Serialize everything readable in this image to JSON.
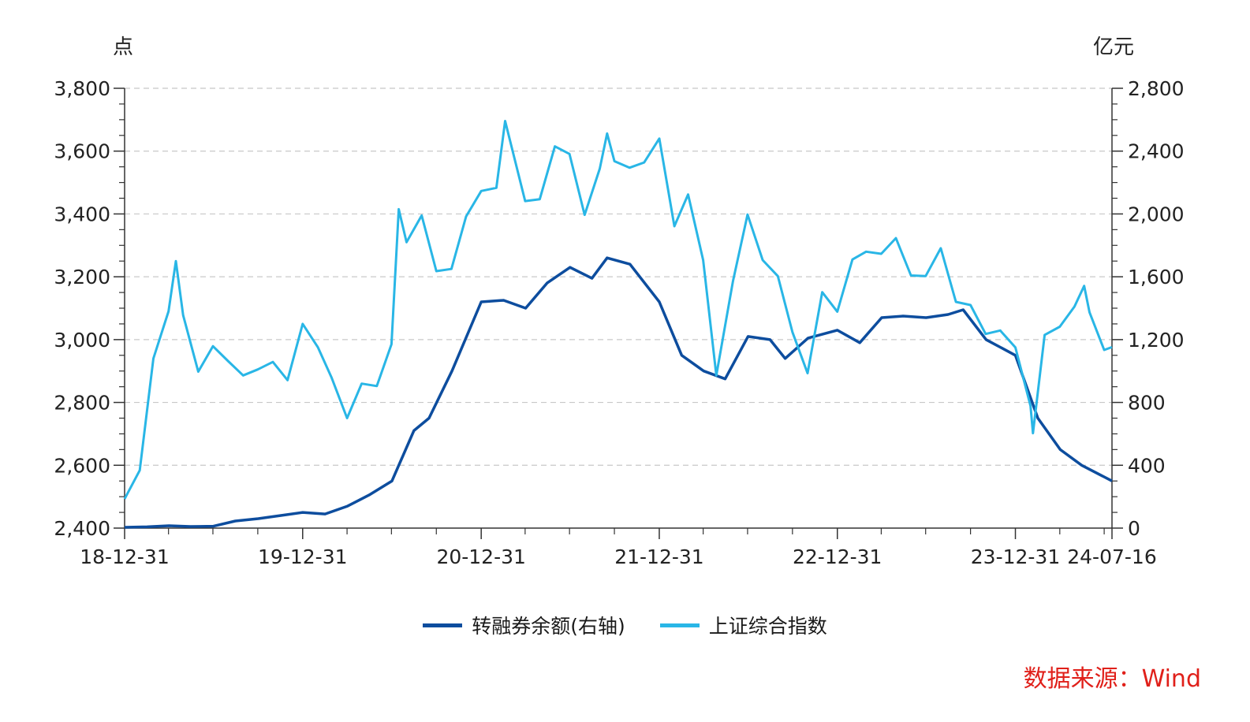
{
  "chart_data": {
    "type": "line",
    "left_axis_unit": "点",
    "right_axis_unit": "亿元",
    "left_ylim": [
      2400,
      3800
    ],
    "right_ylim": [
      0,
      2800
    ],
    "left_ticks": [
      "2,400",
      "2,600",
      "2,800",
      "3,000",
      "3,200",
      "3,400",
      "3,600",
      "3,800"
    ],
    "right_ticks": [
      "0",
      "400",
      "800",
      "1,200",
      "1,600",
      "2,000",
      "2,400",
      "2,800"
    ],
    "x_tick_labels": [
      "18-12-31",
      "19-12-31",
      "20-12-31",
      "21-12-31",
      "22-12-31",
      "23-12-31",
      "24-07-16"
    ],
    "grid": true,
    "legend_position": "bottom",
    "series": [
      {
        "name": "转融券余额(右轴)",
        "axis": "right",
        "color": "#0d4d9e",
        "points": [
          [
            "2018-12-31",
            5
          ],
          [
            "2019-02-15",
            8
          ],
          [
            "2019-04-01",
            15
          ],
          [
            "2019-05-15",
            10
          ],
          [
            "2019-07-01",
            12
          ],
          [
            "2019-08-15",
            45
          ],
          [
            "2019-10-01",
            60
          ],
          [
            "2019-11-15",
            80
          ],
          [
            "2019-12-31",
            100
          ],
          [
            "2020-02-15",
            90
          ],
          [
            "2020-04-01",
            140
          ],
          [
            "2020-05-15",
            210
          ],
          [
            "2020-07-01",
            300
          ],
          [
            "2020-08-15",
            620
          ],
          [
            "2020-09-15",
            700
          ],
          [
            "2020-11-01",
            1000
          ],
          [
            "2020-12-31",
            1440
          ],
          [
            "2021-02-15",
            1450
          ],
          [
            "2021-04-01",
            1400
          ],
          [
            "2021-05-15",
            1560
          ],
          [
            "2021-07-01",
            1660
          ],
          [
            "2021-08-15",
            1590
          ],
          [
            "2021-09-15",
            1720
          ],
          [
            "2021-11-01",
            1680
          ],
          [
            "2021-12-31",
            1440
          ],
          [
            "2022-02-15",
            1100
          ],
          [
            "2022-04-01",
            1000
          ],
          [
            "2022-05-15",
            950
          ],
          [
            "2022-07-01",
            1220
          ],
          [
            "2022-08-15",
            1200
          ],
          [
            "2022-09-15",
            1080
          ],
          [
            "2022-11-01",
            1210
          ],
          [
            "2022-12-31",
            1260
          ],
          [
            "2023-02-15",
            1180
          ],
          [
            "2023-04-01",
            1340
          ],
          [
            "2023-05-15",
            1350
          ],
          [
            "2023-07-01",
            1340
          ],
          [
            "2023-08-15",
            1360
          ],
          [
            "2023-09-15",
            1390
          ],
          [
            "2023-11-01",
            1200
          ],
          [
            "2023-12-31",
            1100
          ],
          [
            "2024-02-15",
            700
          ],
          [
            "2024-04-01",
            500
          ],
          [
            "2024-05-15",
            400
          ],
          [
            "2024-07-16",
            300
          ]
        ]
      },
      {
        "name": "上证综合指数",
        "axis": "left",
        "color": "#29b6e6",
        "points": [
          [
            "2018-12-31",
            2493
          ],
          [
            "2019-01-31",
            2584
          ],
          [
            "2019-02-28",
            2940
          ],
          [
            "2019-03-31",
            3090
          ],
          [
            "2019-04-15",
            3250
          ],
          [
            "2019-04-30",
            3078
          ],
          [
            "2019-05-31",
            2898
          ],
          [
            "2019-06-30",
            2979
          ],
          [
            "2019-07-31",
            2932
          ],
          [
            "2019-08-31",
            2886
          ],
          [
            "2019-09-30",
            2905
          ],
          [
            "2019-10-31",
            2929
          ],
          [
            "2019-11-30",
            2871
          ],
          [
            "2019-12-31",
            3050
          ],
          [
            "2020-01-31",
            2976
          ],
          [
            "2020-02-28",
            2880
          ],
          [
            "2020-03-31",
            2750
          ],
          [
            "2020-04-30",
            2860
          ],
          [
            "2020-05-31",
            2852
          ],
          [
            "2020-06-30",
            2985
          ],
          [
            "2020-07-15",
            3415
          ],
          [
            "2020-07-31",
            3310
          ],
          [
            "2020-08-31",
            3395
          ],
          [
            "2020-09-30",
            3218
          ],
          [
            "2020-10-31",
            3225
          ],
          [
            "2020-11-30",
            3392
          ],
          [
            "2020-12-31",
            3473
          ],
          [
            "2021-01-31",
            3483
          ],
          [
            "2021-02-18",
            3696
          ],
          [
            "2021-03-31",
            3441
          ],
          [
            "2021-04-30",
            3447
          ],
          [
            "2021-05-31",
            3615
          ],
          [
            "2021-06-30",
            3591
          ],
          [
            "2021-07-31",
            3397
          ],
          [
            "2021-08-31",
            3544
          ],
          [
            "2021-09-15",
            3656
          ],
          [
            "2021-09-30",
            3568
          ],
          [
            "2021-10-31",
            3547
          ],
          [
            "2021-11-30",
            3564
          ],
          [
            "2021-12-31",
            3640
          ],
          [
            "2022-01-31",
            3361
          ],
          [
            "2022-02-28",
            3462
          ],
          [
            "2022-03-31",
            3253
          ],
          [
            "2022-04-27",
            2886
          ],
          [
            "2022-05-31",
            3186
          ],
          [
            "2022-06-30",
            3398
          ],
          [
            "2022-07-31",
            3253
          ],
          [
            "2022-08-31",
            3202
          ],
          [
            "2022-09-30",
            3024
          ],
          [
            "2022-10-31",
            2893
          ],
          [
            "2022-11-30",
            3151
          ],
          [
            "2022-12-31",
            3089
          ],
          [
            "2023-01-31",
            3255
          ],
          [
            "2023-02-28",
            3280
          ],
          [
            "2023-03-31",
            3273
          ],
          [
            "2023-04-30",
            3323
          ],
          [
            "2023-05-31",
            3204
          ],
          [
            "2023-06-30",
            3202
          ],
          [
            "2023-07-31",
            3291
          ],
          [
            "2023-08-31",
            3120
          ],
          [
            "2023-09-30",
            3110
          ],
          [
            "2023-10-31",
            3018
          ],
          [
            "2023-11-30",
            3029
          ],
          [
            "2023-12-31",
            2975
          ],
          [
            "2024-01-31",
            2789
          ],
          [
            "2024-02-05",
            2702
          ],
          [
            "2024-02-29",
            3015
          ],
          [
            "2024-03-31",
            3041
          ],
          [
            "2024-04-30",
            3105
          ],
          [
            "2024-05-20",
            3171
          ],
          [
            "2024-05-31",
            3087
          ],
          [
            "2024-06-30",
            2967
          ],
          [
            "2024-07-16",
            2976
          ]
        ]
      }
    ]
  },
  "source_text": "数据来源：Wind"
}
